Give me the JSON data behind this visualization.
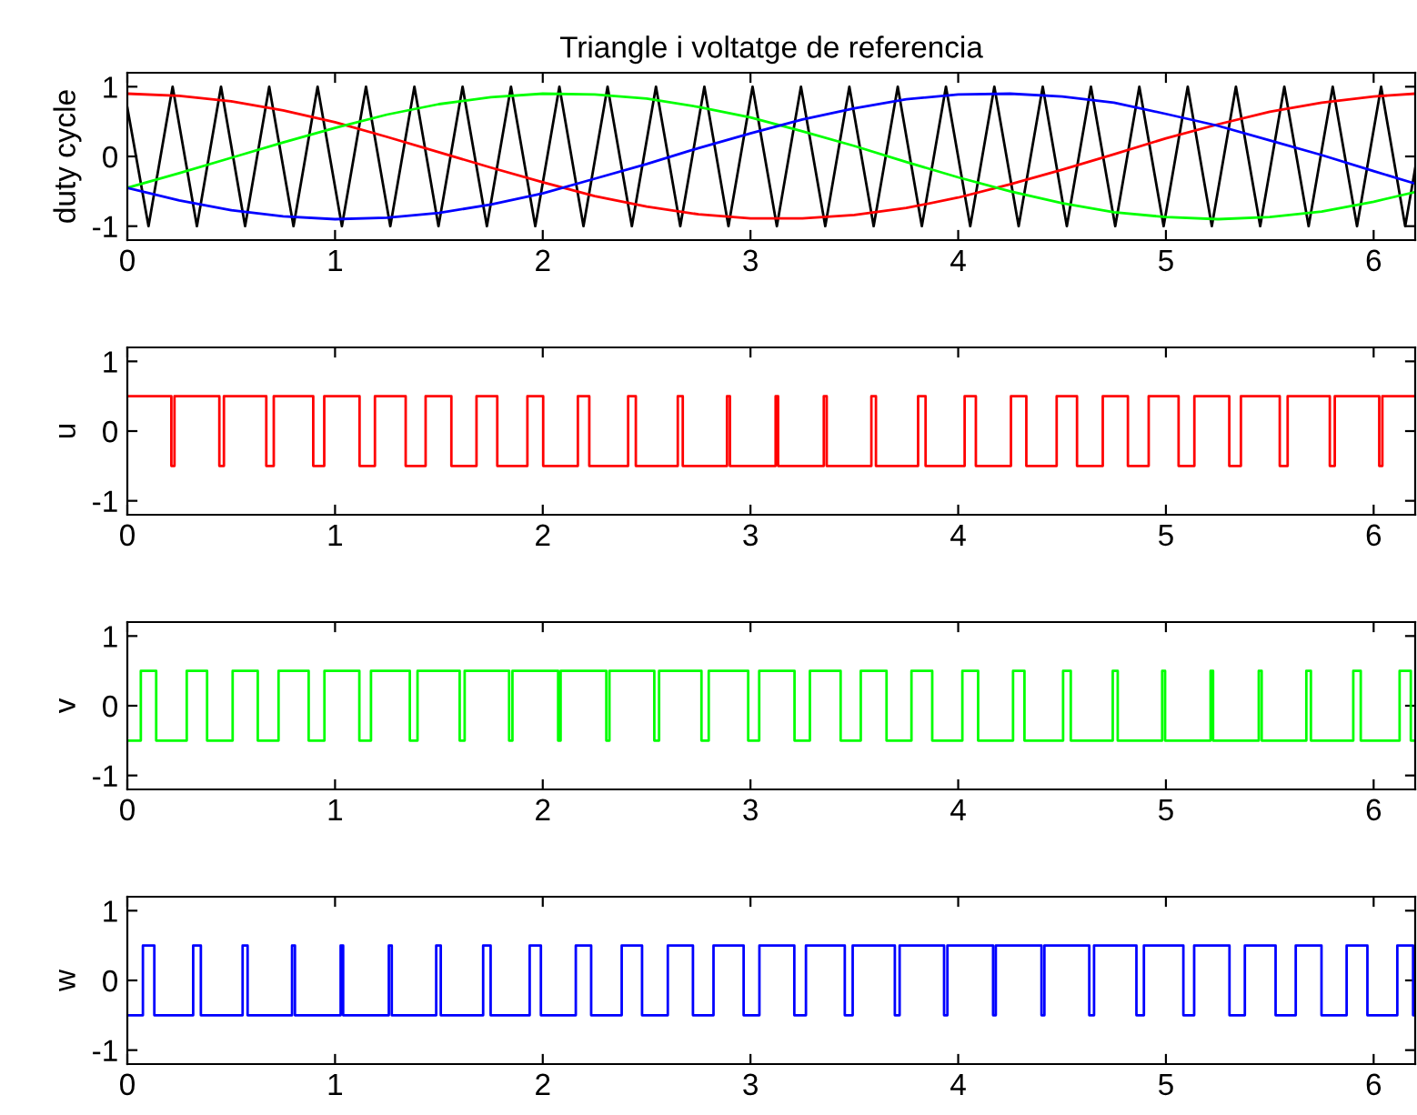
{
  "chart_data": [
    {
      "type": "line",
      "title": "Triangle i voltatge de referencia",
      "ylabel": "duty cycle",
      "xlim": [
        0,
        6.2
      ],
      "ylim": [
        -1.2,
        1.2
      ],
      "xticks": [
        0,
        1,
        2,
        3,
        4,
        5,
        6
      ],
      "yticks": [
        -1,
        0,
        1
      ],
      "grid": false,
      "series": [
        {
          "color": "#000000",
          "x": [
            0,
            0.102,
            0.218,
            0.335,
            0.451,
            0.567,
            0.683,
            0.8,
            0.916,
            1.033,
            1.149,
            1.266,
            1.382,
            1.498,
            1.614,
            1.731,
            1.847,
            1.964,
            2.08,
            2.196,
            2.312,
            2.429,
            2.545,
            2.662,
            2.778,
            2.894,
            3.01,
            3.127,
            3.243,
            3.36,
            3.476,
            3.593,
            3.709,
            3.825,
            3.941,
            4.058,
            4.174,
            4.291,
            4.407,
            4.523,
            4.639,
            4.756,
            4.872,
            4.989,
            5.105,
            5.221,
            5.337,
            5.454,
            5.57,
            5.687,
            5.803,
            5.92,
            6.036,
            6.152,
            6.2
          ],
          "values": [
            0.7,
            -1,
            1,
            -1,
            1,
            -1,
            1,
            -1,
            1,
            -1,
            1,
            -1,
            1,
            -1,
            1,
            -1,
            1,
            -1,
            1,
            -1,
            1,
            -1,
            1,
            -1,
            1,
            -1,
            1,
            -1,
            1,
            -1,
            1,
            -1,
            1,
            -1,
            1,
            -1,
            1,
            -1,
            1,
            -1,
            1,
            -1,
            1,
            -1,
            1,
            -1,
            1,
            -1,
            1,
            -1,
            1,
            -1,
            1,
            -1,
            -0.17
          ]
        },
        {
          "color": "#ff0000",
          "x": [
            0,
            0.25,
            0.5,
            0.75,
            1.0,
            1.25,
            1.5,
            1.75,
            2.0,
            2.25,
            2.5,
            2.75,
            3.0,
            3.25,
            3.5,
            3.75,
            4.0,
            4.25,
            4.5,
            4.75,
            5.0,
            5.25,
            5.5,
            5.75,
            6.0,
            6.2
          ],
          "values": [
            0.9,
            0.87,
            0.79,
            0.66,
            0.49,
            0.28,
            0.06,
            -0.16,
            -0.37,
            -0.57,
            -0.72,
            -0.83,
            -0.89,
            -0.89,
            -0.84,
            -0.74,
            -0.59,
            -0.4,
            -0.19,
            0.03,
            0.26,
            0.46,
            0.64,
            0.77,
            0.86,
            0.9
          ]
        },
        {
          "color": "#00ff00",
          "x": [
            0,
            0.25,
            0.5,
            0.75,
            1.0,
            1.25,
            1.5,
            1.75,
            2.0,
            2.25,
            2.5,
            2.75,
            3.0,
            3.25,
            3.5,
            3.75,
            4.0,
            4.25,
            4.5,
            4.75,
            5.0,
            5.25,
            5.5,
            5.75,
            6.0,
            6.2
          ],
          "values": [
            -0.45,
            -0.24,
            -0.02,
            0.2,
            0.41,
            0.6,
            0.75,
            0.85,
            0.9,
            0.89,
            0.83,
            0.71,
            0.56,
            0.36,
            0.15,
            -0.08,
            -0.3,
            -0.5,
            -0.67,
            -0.8,
            -0.87,
            -0.9,
            -0.87,
            -0.79,
            -0.65,
            -0.51
          ]
        },
        {
          "color": "#0000ff",
          "x": [
            0,
            0.25,
            0.5,
            0.75,
            1.0,
            1.25,
            1.5,
            1.75,
            2.0,
            2.25,
            2.5,
            2.75,
            3.0,
            3.25,
            3.5,
            3.75,
            4.0,
            4.25,
            4.5,
            4.75,
            5.0,
            5.25,
            5.5,
            5.75,
            6.0,
            6.2
          ],
          "values": [
            -0.45,
            -0.63,
            -0.77,
            -0.86,
            -0.9,
            -0.88,
            -0.81,
            -0.69,
            -0.53,
            -0.32,
            -0.11,
            0.12,
            0.33,
            0.53,
            0.69,
            0.82,
            0.89,
            0.9,
            0.86,
            0.77,
            0.61,
            0.44,
            0.23,
            0.02,
            -0.21,
            -0.39
          ]
        }
      ]
    },
    {
      "type": "step",
      "ylabel": "u",
      "xlim": [
        0,
        6.2
      ],
      "ylim": [
        -1.2,
        1.2
      ],
      "xticks": [
        0,
        1,
        2,
        3,
        4,
        5,
        6
      ],
      "yticks": [
        -1,
        0,
        1
      ],
      "grid": false,
      "series": [
        {
          "color": "#ff0000",
          "x": [
            0,
            0.212,
            0.227,
            0.443,
            0.465,
            0.669,
            0.705,
            0.895,
            0.948,
            1.118,
            1.192,
            1.34,
            1.436,
            1.56,
            1.681,
            1.781,
            1.926,
            2.002,
            2.169,
            2.224,
            2.411,
            2.448,
            2.65,
            2.674,
            2.887,
            2.901,
            3.121,
            3.133,
            3.353,
            3.367,
            3.582,
            3.604,
            3.807,
            3.843,
            4.031,
            4.085,
            4.254,
            4.328,
            4.474,
            4.572,
            4.696,
            4.817,
            4.917,
            5.061,
            5.137,
            5.305,
            5.361,
            5.548,
            5.586,
            5.789,
            5.813,
            6.027,
            6.042,
            6.2
          ],
          "values": [
            0.5,
            -0.5,
            0.5,
            -0.5,
            0.5,
            -0.5,
            0.5,
            -0.5,
            0.5,
            -0.5,
            0.5,
            -0.5,
            0.5,
            -0.5,
            0.5,
            -0.5,
            0.5,
            -0.5,
            0.5,
            -0.5,
            0.5,
            -0.5,
            0.5,
            -0.5,
            0.5,
            -0.5,
            0.5,
            -0.5,
            0.5,
            -0.5,
            0.5,
            -0.5,
            0.5,
            -0.5,
            0.5,
            -0.5,
            0.5,
            -0.5,
            0.5,
            -0.5,
            0.5,
            -0.5,
            0.5,
            -0.5,
            0.5,
            -0.5,
            0.5,
            -0.5,
            0.5,
            -0.5,
            0.5,
            -0.5,
            0.5,
            0.5
          ]
        }
      ]
    },
    {
      "type": "step",
      "ylabel": "v",
      "xlim": [
        0,
        6.2
      ],
      "ylim": [
        -1.2,
        1.2
      ],
      "xticks": [
        0,
        1,
        2,
        3,
        4,
        5,
        6
      ],
      "yticks": [
        -1,
        0,
        1
      ],
      "grid": false,
      "series": [
        {
          "color": "#00ff00",
          "x": [
            0,
            0.065,
            0.139,
            0.286,
            0.384,
            0.507,
            0.628,
            0.728,
            0.873,
            0.949,
            1.117,
            1.173,
            1.36,
            1.397,
            1.6,
            1.624,
            1.838,
            1.854,
            2.074,
            2.086,
            2.306,
            2.321,
            2.537,
            2.56,
            2.764,
            2.799,
            2.989,
            3.042,
            3.212,
            3.286,
            3.434,
            3.531,
            3.655,
            3.775,
            3.875,
            4.02,
            4.096,
            4.264,
            4.319,
            4.505,
            4.542,
            4.744,
            4.768,
            4.982,
            4.996,
            5.215,
            5.227,
            5.447,
            5.461,
            5.676,
            5.698,
            5.902,
            5.938,
            6.125,
            6.179,
            6.2
          ],
          "values": [
            -0.5,
            0.5,
            -0.5,
            0.5,
            -0.5,
            0.5,
            -0.5,
            0.5,
            -0.5,
            0.5,
            -0.5,
            0.5,
            -0.5,
            0.5,
            -0.5,
            0.5,
            -0.5,
            0.5,
            -0.5,
            0.5,
            -0.5,
            0.5,
            -0.5,
            0.5,
            -0.5,
            0.5,
            -0.5,
            0.5,
            -0.5,
            0.5,
            -0.5,
            0.5,
            -0.5,
            0.5,
            -0.5,
            0.5,
            -0.5,
            0.5,
            -0.5,
            0.5,
            -0.5,
            0.5,
            -0.5,
            0.5,
            -0.5,
            0.5,
            -0.5,
            0.5,
            -0.5,
            0.5,
            -0.5,
            0.5,
            -0.5,
            0.5,
            -0.5,
            -0.5
          ]
        }
      ]
    },
    {
      "type": "step",
      "ylabel": "w",
      "xlim": [
        0,
        6.2
      ],
      "ylim": [
        -1.2,
        1.2
      ],
      "xticks": [
        0,
        1,
        2,
        3,
        4,
        5,
        6
      ],
      "yticks": [
        -1,
        0,
        1
      ],
      "grid": false,
      "series": [
        {
          "color": "#0000ff",
          "x": [
            0,
            0.075,
            0.13,
            0.317,
            0.354,
            0.555,
            0.579,
            0.793,
            0.807,
            1.027,
            1.039,
            1.259,
            1.273,
            1.487,
            1.509,
            1.713,
            1.749,
            1.937,
            1.991,
            2.159,
            2.233,
            2.38,
            2.478,
            2.602,
            2.723,
            2.822,
            2.967,
            3.043,
            3.211,
            3.267,
            3.454,
            3.492,
            3.695,
            3.718,
            3.932,
            3.948,
            4.168,
            4.181,
            4.401,
            4.415,
            4.631,
            4.654,
            4.858,
            4.894,
            5.084,
            5.136,
            5.306,
            5.38,
            5.528,
            5.625,
            5.749,
            5.87,
            5.97,
            6.114,
            6.19,
            6.2
          ],
          "values": [
            -0.5,
            0.5,
            -0.5,
            0.5,
            -0.5,
            0.5,
            -0.5,
            0.5,
            -0.5,
            0.5,
            -0.5,
            0.5,
            -0.5,
            0.5,
            -0.5,
            0.5,
            -0.5,
            0.5,
            -0.5,
            0.5,
            -0.5,
            0.5,
            -0.5,
            0.5,
            -0.5,
            0.5,
            -0.5,
            0.5,
            -0.5,
            0.5,
            -0.5,
            0.5,
            -0.5,
            0.5,
            -0.5,
            0.5,
            -0.5,
            0.5,
            -0.5,
            0.5,
            -0.5,
            0.5,
            -0.5,
            0.5,
            -0.5,
            0.5,
            -0.5,
            0.5,
            -0.5,
            0.5,
            -0.5,
            0.5,
            -0.5,
            0.5,
            -0.5,
            -0.5
          ]
        }
      ]
    }
  ]
}
